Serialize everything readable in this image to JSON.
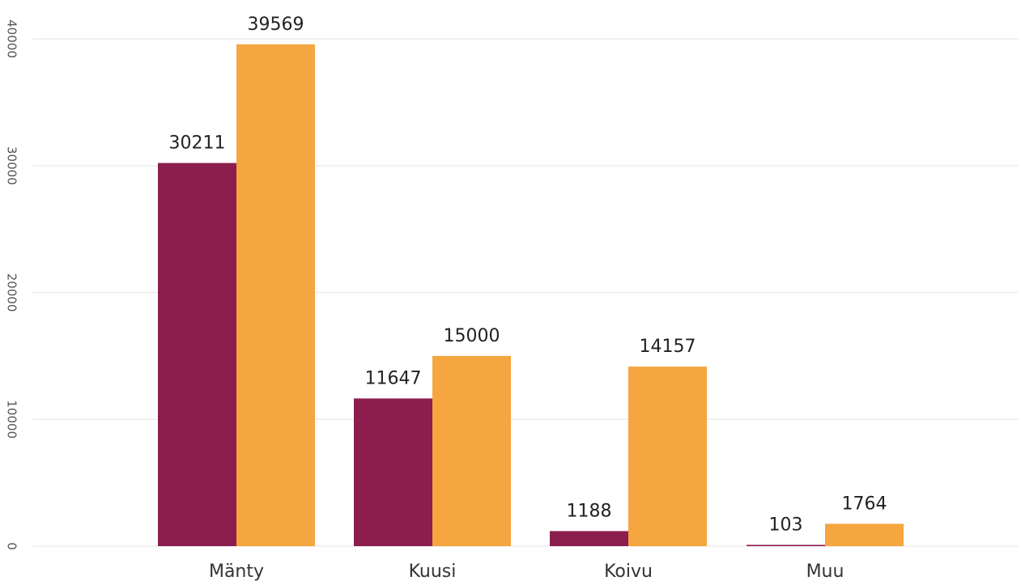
{
  "chart_data": {
    "type": "bar",
    "categories": [
      "Mänty",
      "Kuusi",
      "Koivu",
      "Muu"
    ],
    "series": [
      {
        "values": [
          30211,
          11647,
          1188,
          103
        ],
        "color": "#8b1e4f"
      },
      {
        "values": [
          39569,
          15000,
          14157,
          1764
        ],
        "color": "#f5a640"
      }
    ],
    "ylim": [
      0,
      40000
    ],
    "y_ticks": [
      0,
      10000,
      20000,
      30000,
      40000
    ],
    "tick_labels": [
      "0",
      "10000",
      "20000",
      "30000",
      "40000"
    ],
    "grid": true,
    "data_labels": true
  }
}
